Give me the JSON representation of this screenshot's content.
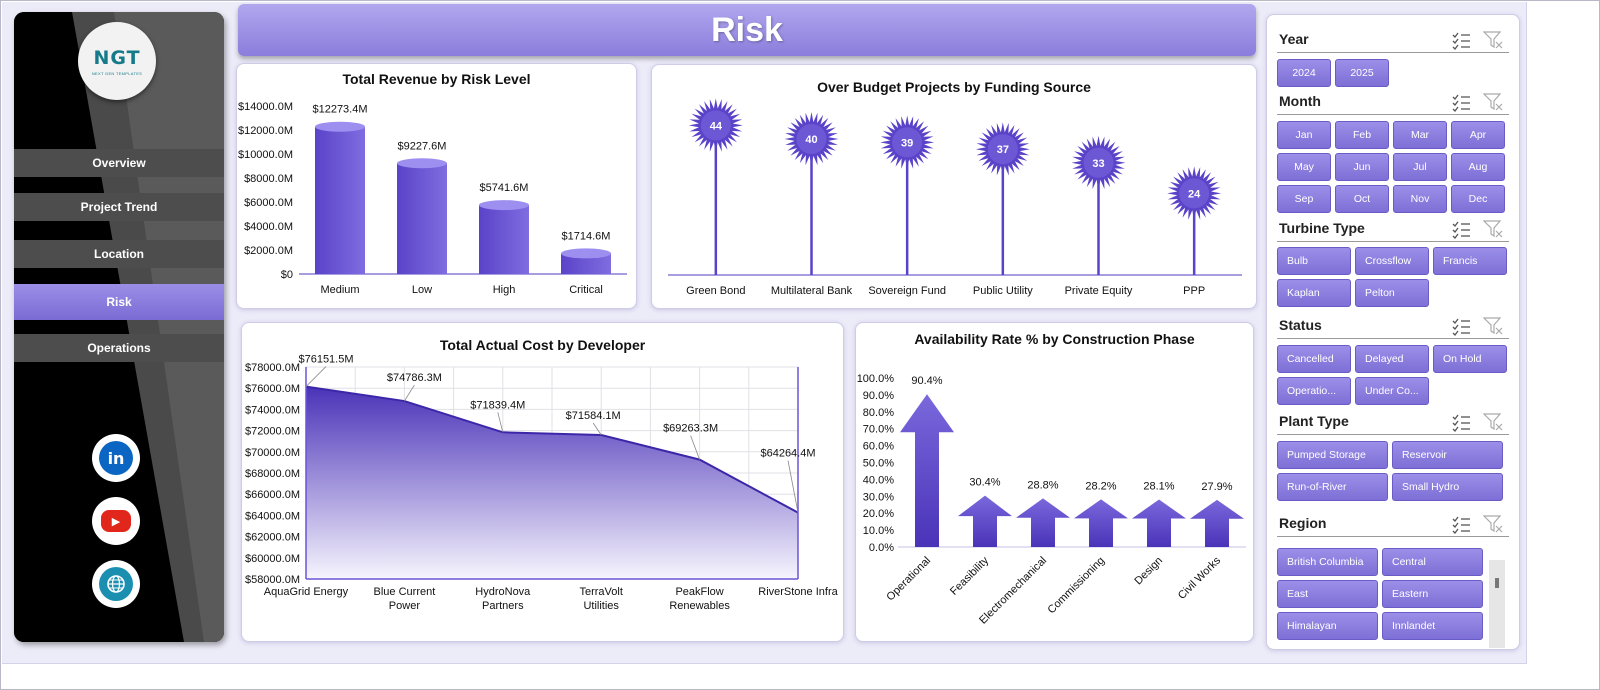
{
  "page_title": "Risk",
  "logo": {
    "mark": "NGT",
    "tagline": "NEXT GEN TEMPLATES"
  },
  "nav": {
    "items": [
      {
        "label": "Overview",
        "active": false
      },
      {
        "label": "Project Trend",
        "active": false
      },
      {
        "label": "Location",
        "active": false
      },
      {
        "label": "Risk",
        "active": true
      },
      {
        "label": "Operations",
        "active": false
      }
    ]
  },
  "social": [
    {
      "icon": "linkedin-icon",
      "glyph": "in",
      "color": "#0a66c2"
    },
    {
      "icon": "youtube-icon",
      "glyph": "▶",
      "color": "#e1261c"
    },
    {
      "icon": "globe-icon",
      "glyph": "🌐",
      "color": "#1a8fb0"
    }
  ],
  "colors": {
    "accent": "#6a55d6",
    "accent_dark": "#4a33b8",
    "banner": "#9d91e6",
    "sidebar": "#000000",
    "nav_button": "#4d4d4d"
  },
  "chart_data": [
    {
      "id": "revenue",
      "type": "bar",
      "title": "Total Revenue  by Risk Level",
      "categories": [
        "Medium",
        "Low",
        "High",
        "Critical"
      ],
      "values": [
        12273.4,
        9227.6,
        5741.6,
        1714.6
      ],
      "data_labels": [
        "$12273.4M",
        "$9227.6M",
        "$5741.6M",
        "$1714.6M"
      ],
      "yticks": [
        "$0",
        "$2000.0M",
        "$4000.0M",
        "$6000.0M",
        "$8000.0M",
        "$10000.0M",
        "$12000.0M",
        "$14000.0M"
      ],
      "ylim": [
        0,
        14000
      ]
    },
    {
      "id": "overbudget",
      "type": "scatter",
      "title": "Over Budget Projects by Funding Source",
      "categories": [
        "Green Bond",
        "Multilateral Bank",
        "Sovereign Fund",
        "Public Utility",
        "Private Equity",
        "PPP"
      ],
      "values": [
        44,
        40,
        39,
        37,
        33,
        24
      ],
      "ylim": [
        0,
        50
      ]
    },
    {
      "id": "actualcost",
      "type": "area",
      "title": "Total Actual Cost by Developer",
      "categories": [
        "AquaGrid Energy",
        "Blue Current Power",
        "HydroNova Partners",
        "TerraVolt Utilities",
        "PeakFlow Renewables",
        "RiverStone Infra"
      ],
      "values": [
        76151.5,
        74786.3,
        71839.4,
        71584.1,
        69263.3,
        64264.4
      ],
      "data_labels": [
        "$76151.5M",
        "$74786.3M",
        "$71839.4M",
        "$71584.1M",
        "$69263.3M",
        "$64264.4M"
      ],
      "yticks": [
        "$58000.0M",
        "$60000.0M",
        "$62000.0M",
        "$64000.0M",
        "$66000.0M",
        "$68000.0M",
        "$70000.0M",
        "$72000.0M",
        "$74000.0M",
        "$76000.0M",
        "$78000.0M"
      ],
      "ylim": [
        58000,
        78000
      ]
    },
    {
      "id": "availability",
      "type": "bar",
      "title": "Availability Rate % by Construction  Phase",
      "categories": [
        "Operational",
        "Feasibility",
        "Electromechanical",
        "Commissioning",
        "Design",
        "Civil Works"
      ],
      "values": [
        90.4,
        30.4,
        28.8,
        28.2,
        28.1,
        27.9
      ],
      "data_labels": [
        "90.4%",
        "30.4%",
        "28.8%",
        "28.2%",
        "28.1%",
        "27.9%"
      ],
      "yticks": [
        "0.0%",
        "10.0%",
        "20.0%",
        "30.0%",
        "40.0%",
        "50.0%",
        "60.0%",
        "70.0%",
        "80.0%",
        "90.0%",
        "100.0%"
      ],
      "ylim": [
        0,
        100
      ]
    }
  ],
  "slicers": {
    "year": {
      "label": "Year",
      "items": [
        "2024",
        "2025"
      ]
    },
    "month": {
      "label": "Month",
      "items": [
        "Jan",
        "Feb",
        "Mar",
        "Apr",
        "May",
        "Jun",
        "Jul",
        "Aug",
        "Sep",
        "Oct",
        "Nov",
        "Dec"
      ]
    },
    "turbine": {
      "label": "Turbine Type",
      "items": [
        "Bulb",
        "Crossflow",
        "Francis",
        "Kaplan",
        "Pelton"
      ]
    },
    "status": {
      "label": "Status",
      "items": [
        "Cancelled",
        "Delayed",
        "On Hold",
        "Operatio...",
        "Under Co..."
      ]
    },
    "plant": {
      "label": "Plant Type",
      "items": [
        "Pumped Storage",
        "Reservoir",
        "Run-of-River",
        "Small Hydro"
      ]
    },
    "region": {
      "label": "Region",
      "items": [
        "British Columbia",
        "Central",
        "East",
        "Eastern",
        "Himalayan",
        "Innlandet"
      ]
    }
  }
}
